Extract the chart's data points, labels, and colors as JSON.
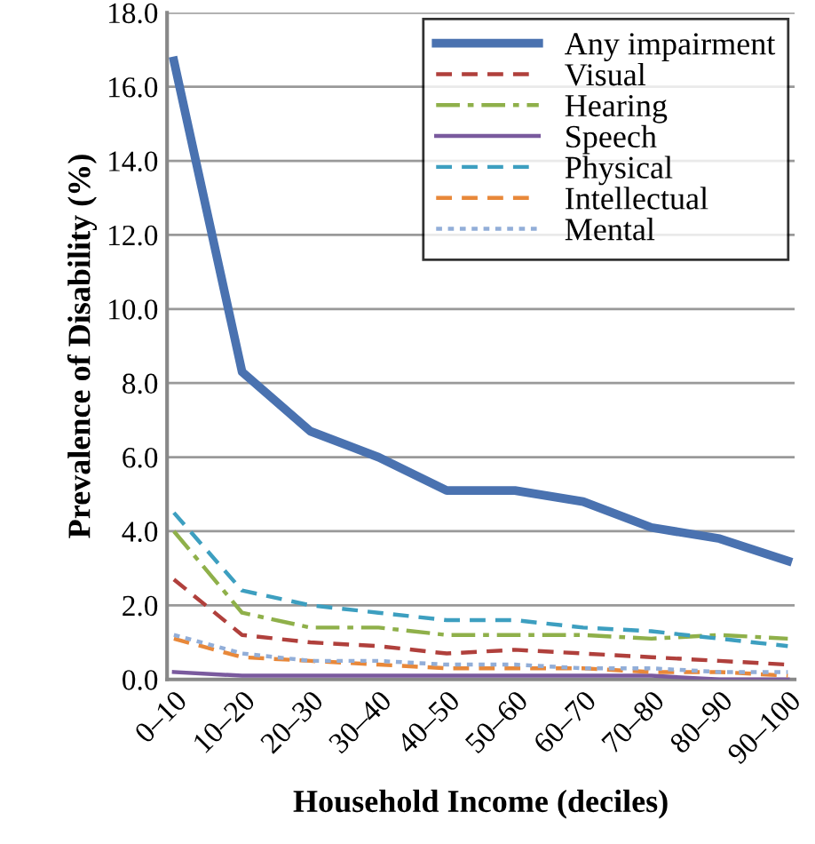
{
  "chart_data": {
    "type": "line",
    "xlabel": "Household Income (deciles)",
    "ylabel": "Prevalence of Disability (%)",
    "categories": [
      "0–10",
      "10–20",
      "20–30",
      "30–40",
      "40–50",
      "50–60",
      "60–70",
      "70–80",
      "80–90",
      "90–100"
    ],
    "series": [
      {
        "name": "Any impairment",
        "color": "#4a72b0",
        "line_style": "solid",
        "values": [
          16.7,
          8.3,
          6.7,
          6.0,
          5.1,
          5.1,
          4.8,
          4.1,
          3.8,
          3.2
        ]
      },
      {
        "name": "Visual",
        "color": "#b0403c",
        "line_style": "dashed",
        "values": [
          2.7,
          1.2,
          1.0,
          0.9,
          0.7,
          0.8,
          0.7,
          0.6,
          0.5,
          0.4
        ]
      },
      {
        "name": "Hearing",
        "color": "#8fb04a",
        "line_style": "dashdot",
        "values": [
          4.0,
          1.8,
          1.4,
          1.4,
          1.2,
          1.2,
          1.2,
          1.1,
          1.2,
          1.1
        ]
      },
      {
        "name": "Speech",
        "color": "#7a5a9e",
        "line_style": "solid",
        "values": [
          0.2,
          0.1,
          0.1,
          0.1,
          0.1,
          0.1,
          0.1,
          0.1,
          0.0,
          0.0
        ]
      },
      {
        "name": "Physical",
        "color": "#3d9fc0",
        "line_style": "dashed",
        "values": [
          4.5,
          2.4,
          2.0,
          1.8,
          1.6,
          1.6,
          1.4,
          1.3,
          1.1,
          0.9
        ]
      },
      {
        "name": "Intellectual",
        "color": "#e8883a",
        "line_style": "dashed",
        "values": [
          1.1,
          0.6,
          0.5,
          0.4,
          0.3,
          0.3,
          0.3,
          0.2,
          0.2,
          0.1
        ]
      },
      {
        "name": "Mental",
        "color": "#92aed8",
        "line_style": "dotted",
        "values": [
          1.2,
          0.7,
          0.5,
          0.5,
          0.4,
          0.4,
          0.3,
          0.3,
          0.2,
          0.2
        ]
      }
    ],
    "ylim": [
      0,
      18
    ],
    "yticks": [
      {
        "value": 0,
        "label": "0.0"
      },
      {
        "value": 2,
        "label": "2.0"
      },
      {
        "value": 4,
        "label": "4.0"
      },
      {
        "value": 6,
        "label": "6.0"
      },
      {
        "value": 8,
        "label": "8.0"
      },
      {
        "value": 10,
        "label": "10.0"
      },
      {
        "value": 12,
        "label": "12.0"
      },
      {
        "value": 14,
        "label": "14.0"
      },
      {
        "value": 16,
        "label": "16.0"
      },
      {
        "value": 18,
        "label": "18.0"
      }
    ],
    "grid": "y",
    "legend": "top right",
    "marker": "none"
  }
}
